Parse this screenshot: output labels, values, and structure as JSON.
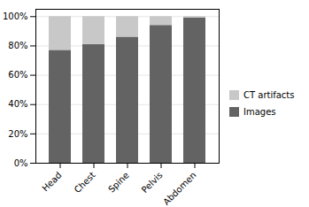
{
  "chart_data": {
    "type": "bar",
    "stacked": true,
    "categories": [
      "Head",
      "Chest",
      "Spine",
      "Pelvis",
      "Abdomen"
    ],
    "series": [
      {
        "name": "Images",
        "color": "#636363",
        "values": [
          0.77,
          0.81,
          0.86,
          0.94,
          0.99
        ]
      },
      {
        "name": "CT artifacts",
        "color": "#c8c8c8",
        "values": [
          0.23,
          0.19,
          0.14,
          0.06,
          0.01
        ]
      }
    ],
    "ylim": [
      0,
      1.05
    ],
    "yticks": [
      {
        "value": 0,
        "label": "0%"
      },
      {
        "value": 0.2,
        "label": "20%"
      },
      {
        "value": 0.4,
        "label": "40%"
      },
      {
        "value": 0.6,
        "label": "60%"
      },
      {
        "value": 0.8,
        "label": "80%"
      },
      {
        "value": 1.0,
        "label": "100%"
      }
    ],
    "grid": true,
    "legend": "right"
  }
}
